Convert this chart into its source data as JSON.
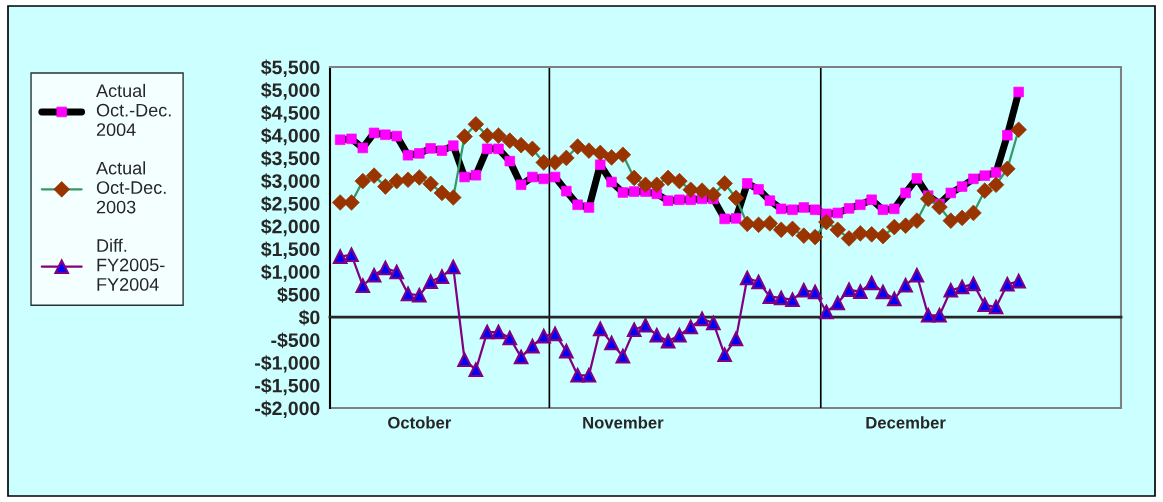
{
  "chart_data": {
    "type": "line",
    "categories": [
      null,
      null,
      null,
      null,
      null,
      null,
      null,
      "October",
      null,
      null,
      null,
      null,
      null,
      null,
      null,
      null,
      null,
      null,
      null,
      null,
      null,
      null,
      null,
      null,
      null,
      "November",
      null,
      null,
      null,
      null,
      null,
      null,
      null,
      null,
      null,
      null,
      null,
      null,
      null,
      null,
      null,
      null,
      null,
      null,
      null,
      null,
      null,
      null,
      null,
      null,
      "December",
      null,
      null,
      null,
      null,
      null,
      null,
      null,
      null,
      null,
      null,
      null,
      null,
      null,
      null,
      null,
      null,
      null,
      null,
      null
    ],
    "series": [
      {
        "name": "Actual\nOct.-Dec.\n2004",
        "color": "#000000",
        "marker": "square",
        "colors": [
          "#ff00ff",
          "#ff00ff",
          "#ff00ff",
          "#ff00ff",
          "#ff00ff",
          "#ff00ff",
          "#ff00ff",
          "#ff00ff",
          "#ff00ff",
          "#ff00ff",
          "#ff00ff",
          "#ff00ff",
          "#ff00ff",
          "#ff00ff",
          "#ff00ff",
          "#ff00ff",
          "#ff00ff",
          "#ff00ff",
          "#ff00ff",
          "#ff00ff",
          "#ff00ff",
          "#ff00ff",
          "#ff00ff",
          "#ff00ff",
          "#ff00ff",
          "#ff00ff",
          "#ff00ff",
          "#ff00ff",
          "#ff00ff",
          "#ff00ff",
          "#ff00ff",
          "#ff00ff",
          "#ff00ff",
          "#ff00ff",
          "#ff00ff",
          "#ff00ff",
          "#ff00ff",
          "#ff00ff",
          "#ff00ff",
          "#ff00ff",
          "#ff00ff",
          "#ff00ff",
          "#ff00ff",
          "#ff00ff",
          "#ff00ff",
          "#ff00ff",
          "#ff00ff",
          "#ff00ff",
          "#ff00ff",
          "#ff00ff",
          "#ff00ff",
          "#ff00ff",
          "#ff00ff",
          "#ff00ff",
          "#ff00ff",
          "#ff00ff",
          "#ff00ff",
          "#ff00ff",
          "#ff00ff",
          "#ff00ff",
          "#ff00ff",
          null,
          null,
          null,
          null,
          null,
          null,
          null,
          null,
          null
        ],
        "values": [
          3900,
          3920,
          3720,
          4050,
          4010,
          3980,
          3560,
          3600,
          3710,
          3660,
          3770,
          3080,
          3120,
          3700,
          3700,
          3430,
          2910,
          3080,
          3040,
          3080,
          2770,
          2470,
          2410,
          3350,
          2970,
          2740,
          2760,
          2760,
          2710,
          2560,
          2580,
          2580,
          2600,
          2600,
          2160,
          2170,
          2940,
          2810,
          2560,
          2380,
          2360,
          2410,
          2360,
          2270,
          2290,
          2390,
          2470,
          2580,
          2360,
          2380,
          2730,
          3050,
          2670,
          2490,
          2730,
          2870,
          3040,
          3110,
          3180,
          4000,
          4950,
          null,
          null,
          null,
          null,
          null,
          null,
          null,
          null,
          null
        ]
      },
      {
        "name": "Actual\nOct-Dec.\n2003",
        "color": "#339966",
        "marker": "diamond",
        "colors": [
          "#993300",
          "#993300",
          "#993300",
          "#993300",
          "#993300",
          "#993300",
          "#993300",
          "#993300",
          "#993300",
          "#993300",
          "#993300",
          "#993300",
          "#993300",
          "#993300",
          "#993300",
          "#993300",
          "#993300",
          "#993300",
          "#993300",
          "#993300",
          "#993300",
          "#993300",
          "#993300",
          "#993300",
          "#993300",
          "#993300",
          "#993300",
          "#993300",
          "#993300",
          "#993300",
          "#993300",
          "#993300",
          "#993300",
          "#993300",
          "#993300",
          "#993300",
          "#993300",
          "#993300",
          "#993300",
          "#993300",
          "#993300",
          "#993300",
          "#993300",
          "#993300",
          "#993300",
          "#993300",
          "#993300",
          "#993300",
          "#993300",
          "#993300",
          "#993300",
          "#993300",
          "#993300",
          "#993300",
          "#993300",
          "#993300",
          "#993300",
          "#993300",
          "#993300",
          "#993300",
          "#993300",
          null,
          null,
          null,
          null,
          null,
          null,
          null,
          null,
          null
        ],
        "values": [
          2520,
          2520,
          2990,
          3110,
          2870,
          2990,
          3020,
          3070,
          2930,
          2730,
          2630,
          3970,
          4240,
          3990,
          3990,
          3880,
          3780,
          3700,
          3400,
          3400,
          3500,
          3750,
          3660,
          3610,
          3510,
          3570,
          3060,
          2910,
          2910,
          3060,
          2990,
          2800,
          2780,
          2690,
          2940,
          2620,
          2050,
          2030,
          2060,
          1920,
          1940,
          1790,
          1760,
          2090,
          1920,
          1730,
          1840,
          1820,
          1780,
          1980,
          2010,
          2120,
          2600,
          2420,
          2120,
          2180,
          2290,
          2780,
          2910,
          3260,
          4120,
          null,
          null,
          null,
          null,
          null,
          null,
          null,
          null,
          null
        ]
      },
      {
        "name": "Diff.\nFY2005-\nFY2004",
        "color": "#800080",
        "marker": "triangle",
        "colors": [
          "#0000ff",
          "#0000ff",
          "#0000ff",
          "#0000ff",
          "#0000ff",
          "#0000ff",
          "#0000ff",
          "#0000ff",
          "#0000ff",
          "#0000ff",
          "#0000ff",
          "#0000ff",
          "#0000ff",
          "#0000ff",
          "#0000ff",
          "#0000ff",
          "#0000ff",
          "#0000ff",
          "#0000ff",
          "#0000ff",
          "#0000ff",
          "#0000ff",
          "#0000ff",
          "#0000ff",
          "#0000ff",
          "#0000ff",
          "#0000ff",
          "#0000ff",
          "#0000ff",
          "#0000ff",
          "#0000ff",
          "#0000ff",
          "#0000ff",
          "#0000ff",
          "#0000ff",
          "#0000ff",
          "#0000ff",
          "#0000ff",
          "#0000ff",
          "#0000ff",
          "#0000ff",
          "#0000ff",
          "#0000ff",
          "#0000ff",
          "#0000ff",
          "#0000ff",
          "#0000ff",
          "#0000ff",
          "#0000ff",
          "#0000ff",
          "#0000ff",
          "#0000ff",
          "#0000ff",
          "#0000ff",
          "#0000ff",
          "#0000ff",
          "#0000ff",
          "#0000ff",
          "#0000ff",
          "#0000ff",
          "#0000ff",
          null,
          null,
          null,
          null,
          null,
          null,
          null,
          null,
          null
        ],
        "values": [
          1330,
          1370,
          690,
          920,
          1080,
          990,
          510,
          480,
          780,
          890,
          1100,
          -940,
          -1160,
          -330,
          -330,
          -460,
          -880,
          -640,
          -420,
          -370,
          -750,
          -1280,
          -1280,
          -260,
          -570,
          -860,
          -280,
          -180,
          -400,
          -530,
          -400,
          -220,
          -40,
          -130,
          -830,
          -480,
          860,
          770,
          450,
          420,
          380,
          590,
          550,
          110,
          310,
          600,
          560,
          750,
          550,
          400,
          700,
          920,
          40,
          40,
          590,
          660,
          730,
          270,
          220,
          720,
          790,
          null,
          null,
          null,
          null,
          null,
          null,
          null,
          null,
          null
        ]
      }
    ],
    "ylim": [
      -2000,
      5500
    ],
    "yticks": [
      {
        "value": -2000,
        "label": "-$2,000"
      },
      {
        "value": -1500,
        "label": "-$1,500"
      },
      {
        "value": -1000,
        "label": "-$1,000"
      },
      {
        "value": -500,
        "label": "-$500"
      },
      {
        "value": 0,
        "label": "$0"
      },
      {
        "value": 500,
        "label": "$500"
      },
      {
        "value": 1000,
        "label": "$1,000"
      },
      {
        "value": 1500,
        "label": "$1,500"
      },
      {
        "value": 2000,
        "label": "$2,000"
      },
      {
        "value": 2500,
        "label": "$2,500"
      },
      {
        "value": 3000,
        "label": "$3,000"
      },
      {
        "value": 3500,
        "label": "$3,500"
      },
      {
        "value": 4000,
        "label": "$4,000"
      },
      {
        "value": 4500,
        "label": "$4,500"
      },
      {
        "value": 5000,
        "label": "$5,000"
      },
      {
        "value": 5500,
        "label": "$5,500"
      }
    ],
    "legend": "left"
  }
}
